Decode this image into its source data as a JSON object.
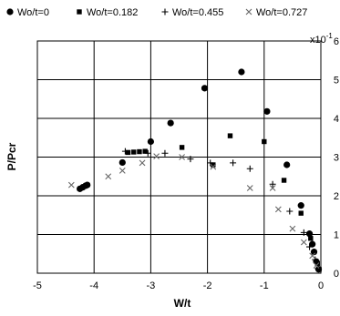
{
  "chart_data": {
    "type": "scatter",
    "title": "",
    "xlabel": "W/t",
    "ylabel": "P/Pcr",
    "xlim": [
      -5,
      0
    ],
    "ylim": [
      0,
      6
    ],
    "x_ticks": [
      "-5",
      "-4",
      "-3",
      "-2",
      "-1",
      "0"
    ],
    "y_ticks": [
      "0",
      "1",
      "2",
      "3",
      "4",
      "5",
      "6"
    ],
    "y_multiplier": "x10",
    "y_multiplier_exp": "-1",
    "grid": true,
    "legend_position": "top",
    "series": [
      {
        "name": "Wo/t=0",
        "marker": "circle",
        "color": "#000000",
        "points": [
          [
            -4.25,
            2.18
          ],
          [
            -4.2,
            2.22
          ],
          [
            -4.15,
            2.26
          ],
          [
            -4.12,
            2.28
          ],
          [
            -3.5,
            2.86
          ],
          [
            -3.0,
            3.4
          ],
          [
            -2.65,
            3.88
          ],
          [
            -2.05,
            4.78
          ],
          [
            -1.4,
            5.2
          ],
          [
            -0.95,
            4.18
          ],
          [
            -0.6,
            2.8
          ],
          [
            -0.35,
            1.75
          ],
          [
            -0.2,
            1.02
          ],
          [
            -0.15,
            0.75
          ],
          [
            -0.12,
            0.55
          ],
          [
            -0.08,
            0.3
          ],
          [
            -0.04,
            0.1
          ]
        ]
      },
      {
        "name": "Wo/t=0.182",
        "marker": "square",
        "color": "#000000",
        "points": [
          [
            -3.4,
            3.12
          ],
          [
            -3.3,
            3.13
          ],
          [
            -3.2,
            3.14
          ],
          [
            -3.1,
            3.15
          ],
          [
            -2.45,
            3.25
          ],
          [
            -1.9,
            2.8
          ],
          [
            -1.6,
            3.55
          ],
          [
            -1.0,
            3.4
          ],
          [
            -0.65,
            2.4
          ],
          [
            -0.35,
            1.55
          ],
          [
            -0.18,
            0.9
          ],
          [
            -0.12,
            0.55
          ],
          [
            -0.06,
            0.25
          ],
          [
            -0.03,
            0.1
          ]
        ]
      },
      {
        "name": "Wo/t=0.455",
        "marker": "plus",
        "color": "#000000",
        "points": [
          [
            -3.45,
            3.15
          ],
          [
            -3.05,
            3.1
          ],
          [
            -2.75,
            3.1
          ],
          [
            -2.3,
            2.95
          ],
          [
            -1.95,
            2.85
          ],
          [
            -1.55,
            2.85
          ],
          [
            -1.25,
            2.7
          ],
          [
            -0.85,
            2.3
          ],
          [
            -0.55,
            1.6
          ],
          [
            -0.3,
            1.05
          ],
          [
            -0.2,
            0.68
          ],
          [
            -0.1,
            0.35
          ],
          [
            -0.05,
            0.12
          ]
        ]
      },
      {
        "name": "Wo/t=0.727",
        "marker": "cross",
        "color": "#666666",
        "points": [
          [
            -4.4,
            2.28
          ],
          [
            -3.75,
            2.5
          ],
          [
            -3.5,
            2.65
          ],
          [
            -3.15,
            2.85
          ],
          [
            -2.9,
            3.02
          ],
          [
            -2.45,
            3.0
          ],
          [
            -1.9,
            2.75
          ],
          [
            -1.25,
            2.2
          ],
          [
            -0.85,
            2.2
          ],
          [
            -0.75,
            1.65
          ],
          [
            -0.5,
            1.15
          ],
          [
            -0.3,
            0.8
          ],
          [
            -0.15,
            0.45
          ],
          [
            -0.08,
            0.2
          ]
        ]
      }
    ]
  }
}
